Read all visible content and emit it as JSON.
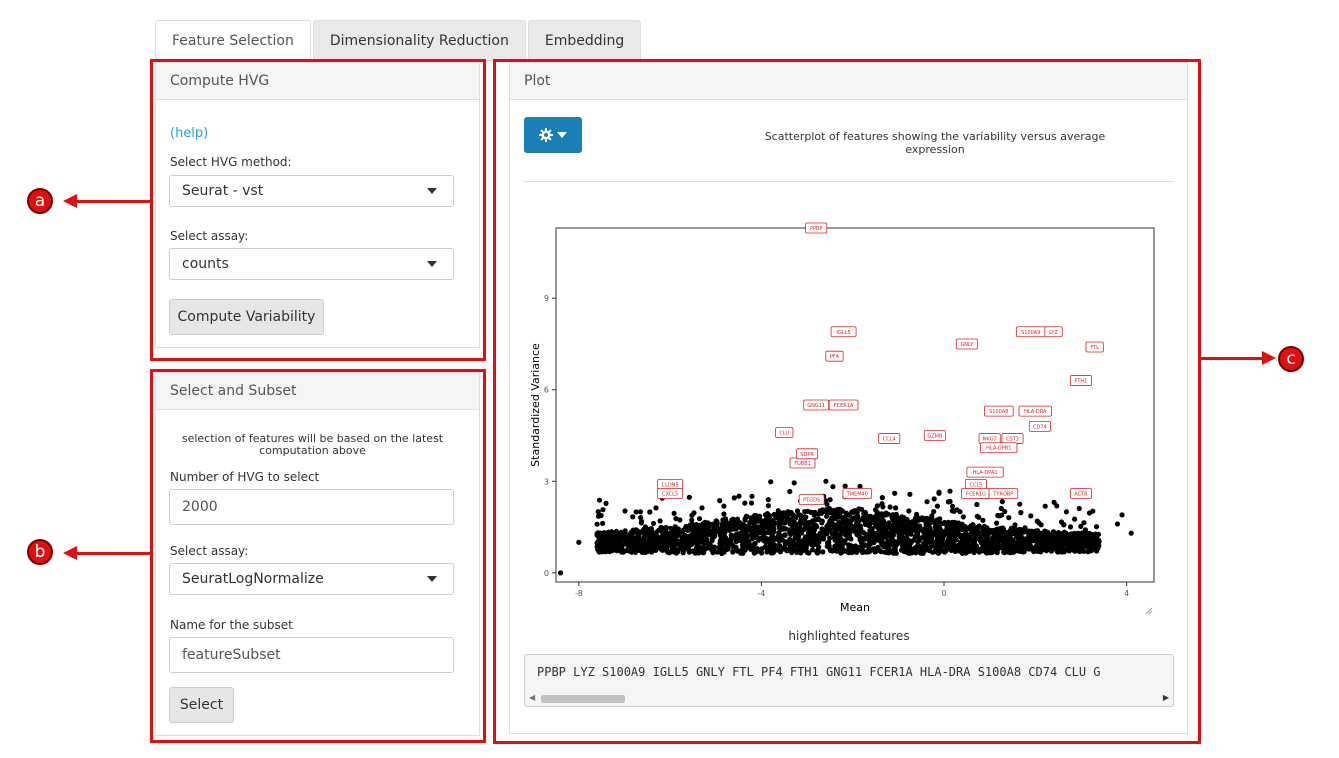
{
  "tabs": [
    "Feature Selection",
    "Dimensionality Reduction",
    "Embedding"
  ],
  "compute_hvg": {
    "title": "Compute HVG",
    "help": "(help)",
    "method_label": "Select HVG method:",
    "method_value": "Seurat - vst",
    "assay_label": "Select assay:",
    "assay_value": "counts",
    "button": "Compute Variability"
  },
  "select_subset": {
    "title": "Select and Subset",
    "note": "selection of features will be based on the latest computation above",
    "num_label": "Number of HVG to select",
    "num_value": "2000",
    "assay_label": "Select assay:",
    "assay_value": "SeuratLogNormalize",
    "name_label": "Name for the subset",
    "name_value": "featureSubset",
    "button": "Select"
  },
  "plot": {
    "title": "Plot",
    "caption": "Scatterplot of features showing the variability versus average expression",
    "highlight_title": "highlighted features",
    "highlight_text": "PPBP LYZ S100A9 IGLL5 GNLY FTL PF4 FTH1 GNG11 FCER1A HLA-DRA S100A8 CD74 CLU G"
  },
  "markers": {
    "a": "a",
    "b": "b",
    "c": "c"
  },
  "colors": {
    "annotation_red": "#e01010",
    "gear_button": "#1a7fb5",
    "label_red": "#dd2222"
  },
  "chart_data": {
    "type": "scatter",
    "xlabel": "Mean",
    "ylabel": "Standardized Variance",
    "xlim": [
      -8.5,
      4.6
    ],
    "ylim": [
      -0.3,
      11.3
    ],
    "x_ticks": [
      "-8",
      "-4",
      "0",
      "4"
    ],
    "y_ticks": [
      "0",
      "3",
      "6",
      "9"
    ],
    "labeled_points": [
      {
        "label": "PPBP",
        "x": -2.8,
        "y": 11.3
      },
      {
        "label": "IGLL5",
        "x": -2.2,
        "y": 7.9
      },
      {
        "label": "S100A9",
        "x": 1.9,
        "y": 7.9
      },
      {
        "label": "LYZ",
        "x": 2.4,
        "y": 7.9
      },
      {
        "label": "GNLY",
        "x": 0.5,
        "y": 7.5
      },
      {
        "label": "FTL",
        "x": 3.3,
        "y": 7.4
      },
      {
        "label": "PF4",
        "x": -2.4,
        "y": 7.1
      },
      {
        "label": "FTH1",
        "x": 3.0,
        "y": 6.3
      },
      {
        "label": "GNG11",
        "x": -2.8,
        "y": 5.5
      },
      {
        "label": "FCER1A",
        "x": -2.2,
        "y": 5.5
      },
      {
        "label": "S100A8",
        "x": 1.2,
        "y": 5.3
      },
      {
        "label": "HLA-DRA",
        "x": 2.0,
        "y": 5.3
      },
      {
        "label": "CD74",
        "x": 2.1,
        "y": 4.8
      },
      {
        "label": "CLU",
        "x": -3.5,
        "y": 4.6
      },
      {
        "label": "CCL4",
        "x": -1.2,
        "y": 4.4
      },
      {
        "label": "GZMB",
        "x": -0.2,
        "y": 4.5
      },
      {
        "label": "NKG7",
        "x": 1.0,
        "y": 4.4
      },
      {
        "label": "CST3",
        "x": 1.5,
        "y": 4.4
      },
      {
        "label": "HLA-DPB1",
        "x": 1.2,
        "y": 4.1
      },
      {
        "label": "HLA-DPA1",
        "x": 0.9,
        "y": 3.3
      },
      {
        "label": "CCL5",
        "x": 0.7,
        "y": 2.9
      },
      {
        "label": "FCER1G",
        "x": 0.7,
        "y": 2.6
      },
      {
        "label": "TYROBP",
        "x": 1.3,
        "y": 2.6
      },
      {
        "label": "ACTB",
        "x": 3.0,
        "y": 2.6
      },
      {
        "label": "CLDN5",
        "x": -6.0,
        "y": 2.9
      },
      {
        "label": "CXCL5",
        "x": -6.0,
        "y": 2.6
      },
      {
        "label": "PTGDS",
        "x": -2.9,
        "y": 2.4
      },
      {
        "label": "TMEM40",
        "x": -1.9,
        "y": 2.6
      },
      {
        "label": "TUBB1",
        "x": -3.1,
        "y": 3.6
      },
      {
        "label": "SDPR",
        "x": -3.0,
        "y": 3.9
      }
    ]
  }
}
